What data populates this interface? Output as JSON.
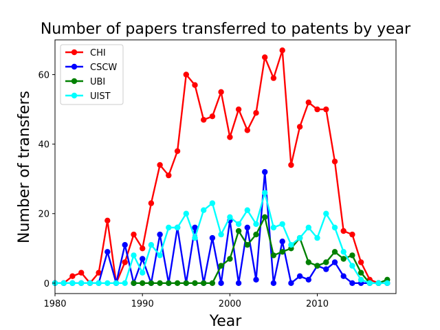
{
  "chart_data": {
    "type": "line",
    "title": "Number of papers transferred to patents by year",
    "xlabel": "Year",
    "ylabel": "Number of transfers",
    "xlim": [
      1980,
      2019
    ],
    "ylim": [
      -3,
      70
    ],
    "xticks": [
      1980,
      1990,
      2000,
      2010
    ],
    "yticks": [
      0,
      20,
      40,
      60
    ],
    "grid": false,
    "legend_position": "top-left",
    "x": [
      1980,
      1981,
      1982,
      1983,
      1984,
      1985,
      1986,
      1987,
      1988,
      1989,
      1990,
      1991,
      1992,
      1993,
      1994,
      1995,
      1996,
      1997,
      1998,
      1999,
      2000,
      2001,
      2002,
      2003,
      2004,
      2005,
      2006,
      2007,
      2008,
      2009,
      2010,
      2011,
      2012,
      2013,
      2014,
      2015,
      2016,
      2017,
      2018
    ],
    "series": [
      {
        "name": "CHI",
        "color": "#ff0000",
        "values": [
          0,
          0,
          2,
          3,
          0,
          3,
          18,
          0,
          6,
          14,
          10,
          23,
          34,
          31,
          38,
          60,
          57,
          47,
          48,
          55,
          42,
          50,
          44,
          49,
          65,
          59,
          67,
          34,
          45,
          52,
          50,
          50,
          35,
          15,
          14,
          6,
          1,
          0,
          0
        ]
      },
      {
        "name": "CSCW",
        "color": "#0000ff",
        "values": [
          0,
          0,
          0,
          0,
          0,
          0,
          9,
          0,
          11,
          0,
          7,
          0,
          14,
          0,
          16,
          0,
          16,
          0,
          13,
          0,
          18,
          0,
          16,
          1,
          32,
          0,
          12,
          0,
          2,
          1,
          5,
          4,
          6,
          2,
          0,
          0,
          0,
          0,
          0
        ]
      },
      {
        "name": "UBI",
        "color": "#008000",
        "values": [
          null,
          null,
          null,
          null,
          null,
          null,
          null,
          null,
          null,
          0,
          0,
          0,
          0,
          0,
          0,
          0,
          0,
          0,
          0,
          5,
          7,
          15,
          11,
          14,
          19,
          8,
          9,
          10,
          13,
          6,
          5,
          6,
          9,
          7,
          8,
          3,
          0,
          0,
          1
        ]
      },
      {
        "name": "UIST",
        "color": "#00ffff",
        "values": [
          0,
          0,
          0,
          0,
          0,
          0,
          0,
          0,
          0,
          8,
          3,
          11,
          8,
          16,
          16,
          20,
          13,
          21,
          23,
          14,
          19,
          17,
          21,
          17,
          26,
          16,
          17,
          11,
          13,
          16,
          13,
          20,
          16,
          9,
          5,
          1,
          0,
          0,
          0
        ]
      }
    ]
  }
}
